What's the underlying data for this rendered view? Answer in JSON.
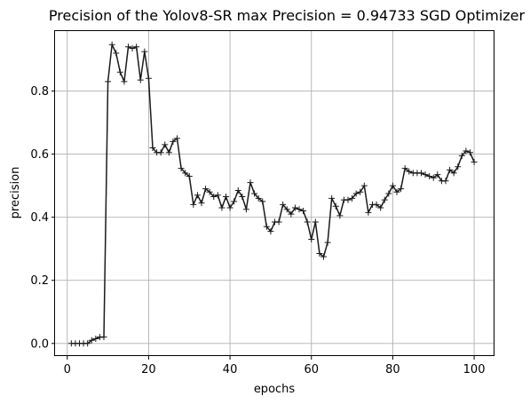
{
  "chart_data": {
    "type": "line",
    "title": "Precision of the Yolov8-SR max Precision = 0.94733 SGD Optimizer",
    "xlabel": "epochs",
    "ylabel": "precision",
    "xlim": [
      -3,
      105
    ],
    "ylim": [
      -0.04,
      0.99
    ],
    "x_ticks": [
      0,
      20,
      40,
      60,
      80,
      100
    ],
    "y_ticks": [
      0.0,
      0.2,
      0.4,
      0.6,
      0.8
    ],
    "x_tick_labels": [
      "0",
      "20",
      "40",
      "60",
      "80",
      "100"
    ],
    "y_tick_labels": [
      "0.0",
      "0.2",
      "0.4",
      "0.6",
      "0.8"
    ],
    "grid": true,
    "line_color": "#1a1a1a",
    "grid_color": "#b0b0b0",
    "marker": "+",
    "series": [
      {
        "x": [
          1,
          2,
          3,
          4,
          5,
          6,
          7,
          8,
          9,
          10,
          11,
          12,
          13,
          14,
          15,
          16,
          17,
          18,
          19,
          20,
          21,
          22,
          23,
          24,
          25,
          26,
          27,
          28,
          29,
          30,
          31,
          32,
          33,
          34,
          35,
          36,
          37,
          38,
          39,
          40,
          41,
          42,
          43,
          44,
          45,
          46,
          47,
          48,
          49,
          50,
          51,
          52,
          53,
          54,
          55,
          56,
          57,
          58,
          59,
          60,
          61,
          62,
          63,
          64,
          65,
          66,
          67,
          68,
          69,
          70,
          71,
          72,
          73,
          74,
          75,
          76,
          77,
          78,
          79,
          80,
          81,
          82,
          83,
          84,
          85,
          86,
          87,
          88,
          89,
          90,
          91,
          92,
          93,
          94,
          95,
          96,
          97,
          98,
          99,
          100
        ],
        "values": [
          0.0,
          0.0,
          0.0,
          0.0,
          0.0,
          0.01,
          0.015,
          0.02,
          0.02,
          0.83,
          0.947,
          0.92,
          0.86,
          0.83,
          0.94,
          0.935,
          0.94,
          0.835,
          0.925,
          0.84,
          0.62,
          0.605,
          0.605,
          0.63,
          0.605,
          0.64,
          0.65,
          0.555,
          0.54,
          0.53,
          0.44,
          0.47,
          0.445,
          0.49,
          0.48,
          0.465,
          0.47,
          0.43,
          0.465,
          0.43,
          0.45,
          0.485,
          0.465,
          0.425,
          0.51,
          0.475,
          0.46,
          0.45,
          0.37,
          0.355,
          0.385,
          0.385,
          0.44,
          0.425,
          0.41,
          0.43,
          0.425,
          0.42,
          0.385,
          0.33,
          0.385,
          0.285,
          0.275,
          0.32,
          0.46,
          0.435,
          0.405,
          0.455,
          0.455,
          0.46,
          0.475,
          0.48,
          0.5,
          0.415,
          0.44,
          0.44,
          0.43,
          0.455,
          0.475,
          0.5,
          0.48,
          0.49,
          0.555,
          0.545,
          0.54,
          0.54,
          0.54,
          0.535,
          0.53,
          0.525,
          0.535,
          0.515,
          0.515,
          0.55,
          0.54,
          0.56,
          0.595,
          0.61,
          0.605,
          0.575
        ]
      }
    ]
  }
}
